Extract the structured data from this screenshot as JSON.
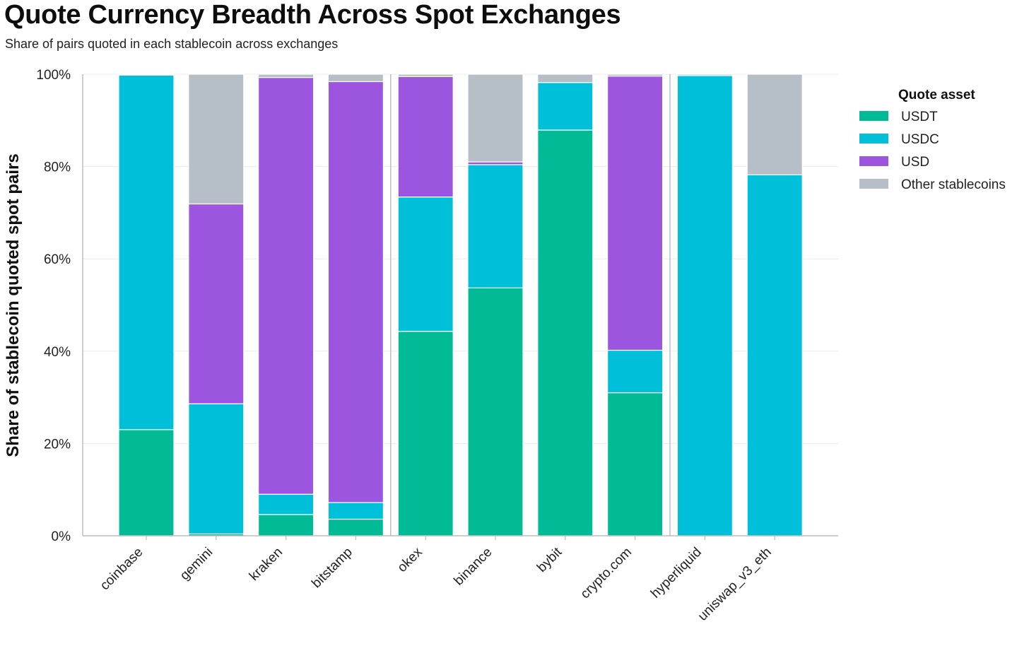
{
  "title": "Quote Currency Breadth Across Spot Exchanges",
  "subtitle": "Share of pairs quoted in each stablecoin across exchanges",
  "chart_data": {
    "type": "bar",
    "stacked": true,
    "ylabel": "Share of stablecoin quoted spot pairs",
    "xlabel": "",
    "ylim": [
      0,
      100
    ],
    "yticks": [
      "0%",
      "20%",
      "40%",
      "60%",
      "80%",
      "100%"
    ],
    "ytick_values": [
      0,
      20,
      40,
      60,
      80,
      100
    ],
    "grid": true,
    "group_dividers_after": [
      "bitstamp",
      "crypto.com"
    ],
    "categories": [
      "coinbase",
      "gemini",
      "kraken",
      "bitstamp",
      "okex",
      "binance",
      "bybit",
      "crypto.com",
      "hyperliquid",
      "uniswap_v3_eth"
    ],
    "series": [
      {
        "name": "USDT",
        "color": "#00bb96",
        "values": [
          23.0,
          0.4,
          4.6,
          3.6,
          44.3,
          53.7,
          87.9,
          31.0,
          0.0,
          0.0
        ]
      },
      {
        "name": "USDC",
        "color": "#00bfd8",
        "values": [
          76.8,
          28.2,
          4.4,
          3.6,
          29.1,
          26.7,
          10.3,
          9.2,
          99.7,
          78.2
        ]
      },
      {
        "name": "USD",
        "color": "#9b55de",
        "values": [
          0.0,
          43.3,
          90.3,
          91.2,
          26.1,
          0.6,
          0.0,
          59.4,
          0.0,
          0.0
        ]
      },
      {
        "name": "Other stablecoins",
        "color": "#b6bfc7",
        "values": [
          0.2,
          28.1,
          0.7,
          1.6,
          0.5,
          19.0,
          1.8,
          0.4,
          0.3,
          21.8
        ]
      }
    ],
    "legend": {
      "title": "Quote asset",
      "position": "right"
    }
  }
}
